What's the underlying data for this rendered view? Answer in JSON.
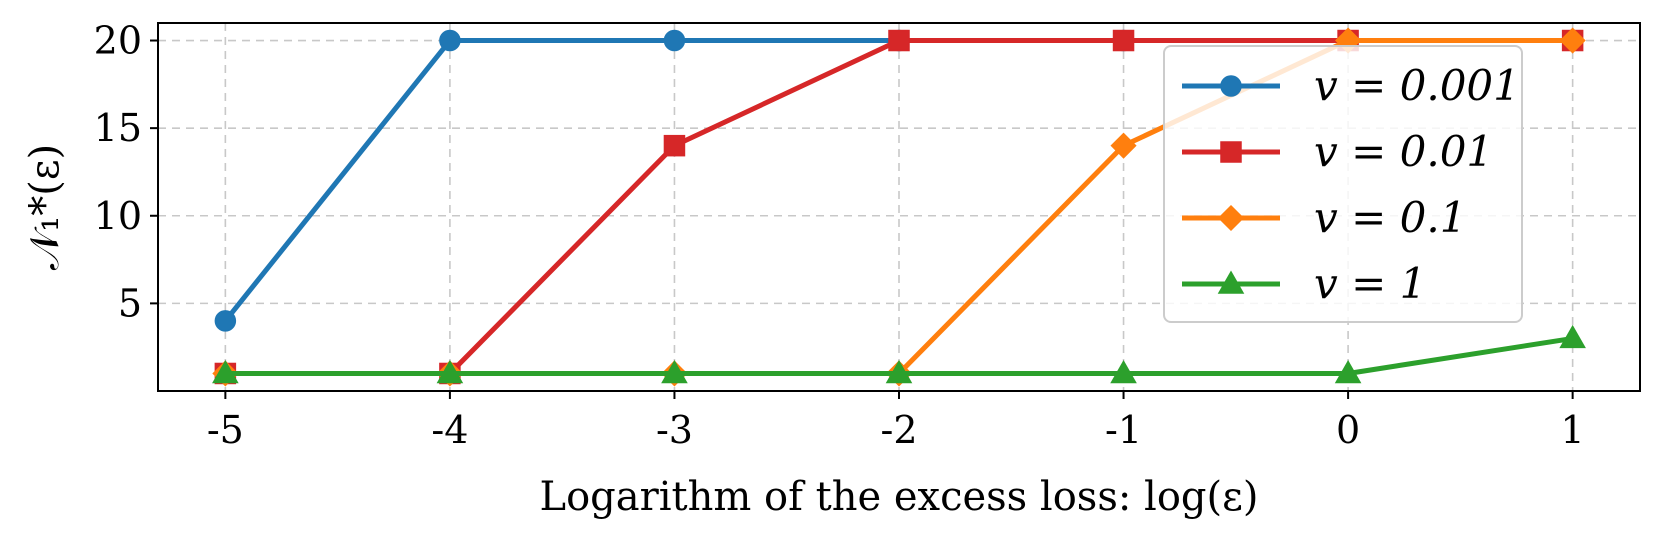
{
  "chart_data": {
    "type": "line",
    "title": "",
    "xlabel": "Logarithm of the excess loss: log(ε)",
    "ylabel": "𝒩₁*(ε)",
    "x": [
      -5,
      -4,
      -3,
      -2,
      -1,
      0,
      1
    ],
    "x_tick_labels": [
      "-5",
      "-4",
      "-3",
      "-2",
      "-1",
      "0",
      "1"
    ],
    "y_ticks": [
      5,
      10,
      15,
      20
    ],
    "y_tick_labels": [
      "5",
      "10",
      "15",
      "20"
    ],
    "xlim": [
      -5.3,
      1.3
    ],
    "ylim": [
      0,
      21
    ],
    "grid": true,
    "legend_position": "top-right",
    "series": [
      {
        "name": "v = 0.001",
        "color": "#1f77b4",
        "marker": "circle",
        "values": [
          4,
          20,
          20,
          20,
          20,
          20,
          20
        ]
      },
      {
        "name": "v = 0.01",
        "color": "#d62728",
        "marker": "square",
        "values": [
          1,
          1,
          14,
          20,
          20,
          20,
          20
        ]
      },
      {
        "name": "v = 0.1",
        "color": "#ff7f0e",
        "marker": "diamond",
        "values": [
          1,
          1,
          1,
          1,
          14,
          20,
          20
        ]
      },
      {
        "name": "v = 1",
        "color": "#2ca02c",
        "marker": "triangle",
        "values": [
          1,
          1,
          1,
          1,
          1,
          1,
          3
        ]
      }
    ]
  }
}
